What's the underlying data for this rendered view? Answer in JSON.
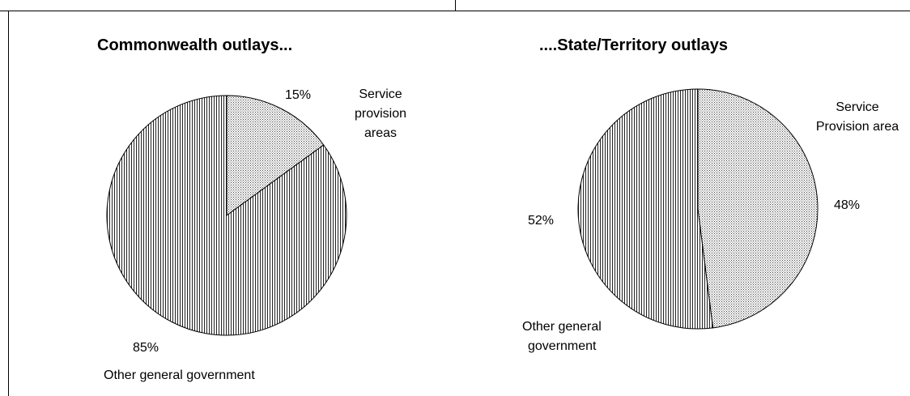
{
  "chart_data": [
    {
      "type": "pie",
      "title": "Commonwealth outlays...",
      "slices": [
        {
          "label_lines": [
            "Service",
            "provision",
            "areas"
          ],
          "value": 15,
          "value_label": "15%",
          "pattern": "dots"
        },
        {
          "label_lines": [
            "Other general government"
          ],
          "value": 85,
          "value_label": "85%",
          "pattern": "vlines"
        }
      ]
    },
    {
      "type": "pie",
      "title": "....State/Territory outlays",
      "slices": [
        {
          "label_lines": [
            "Service",
            "Provision area"
          ],
          "value": 48,
          "value_label": "48%",
          "pattern": "dots"
        },
        {
          "label_lines": [
            "Other general",
            "government"
          ],
          "value": 52,
          "value_label": "52%",
          "pattern": "vlines"
        }
      ]
    }
  ]
}
